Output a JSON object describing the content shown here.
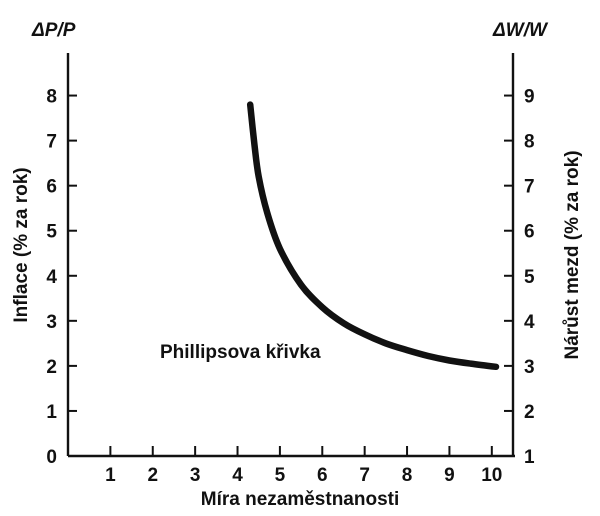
{
  "chart_data": {
    "type": "line",
    "xlabel": "Míra nezaměstnanosti",
    "ylabel_left": "Inflace (% za rok)",
    "ylabel_right": "Nárůst mezd (% za rok)",
    "corner_left": "ΔP/P",
    "corner_right": "ΔW/W",
    "annotation": "Phillipsova křivka",
    "xlim": [
      0,
      10.5
    ],
    "ylim_left": [
      0,
      8.9
    ],
    "ylim_right": [
      1,
      9.9
    ],
    "x_ticks": [
      "1",
      "2",
      "3",
      "4",
      "5",
      "6",
      "7",
      "8",
      "9",
      "10"
    ],
    "y_ticks_left": [
      "0",
      "1",
      "2",
      "3",
      "4",
      "5",
      "6",
      "7",
      "8"
    ],
    "y_ticks_right": [
      "1",
      "2",
      "3",
      "4",
      "5",
      "6",
      "7",
      "8",
      "9"
    ],
    "grid": false,
    "series": [
      {
        "x": [
          4.3,
          4.4,
          4.5,
          4.7,
          5.0,
          5.5,
          6.0,
          6.5,
          7.0,
          7.5,
          8.0,
          8.5,
          9.0,
          9.5,
          10.1
        ],
        "y": [
          7.8,
          6.9,
          6.2,
          5.4,
          4.6,
          3.8,
          3.3,
          2.95,
          2.7,
          2.5,
          2.35,
          2.22,
          2.12,
          2.05,
          1.98
        ]
      }
    ]
  }
}
